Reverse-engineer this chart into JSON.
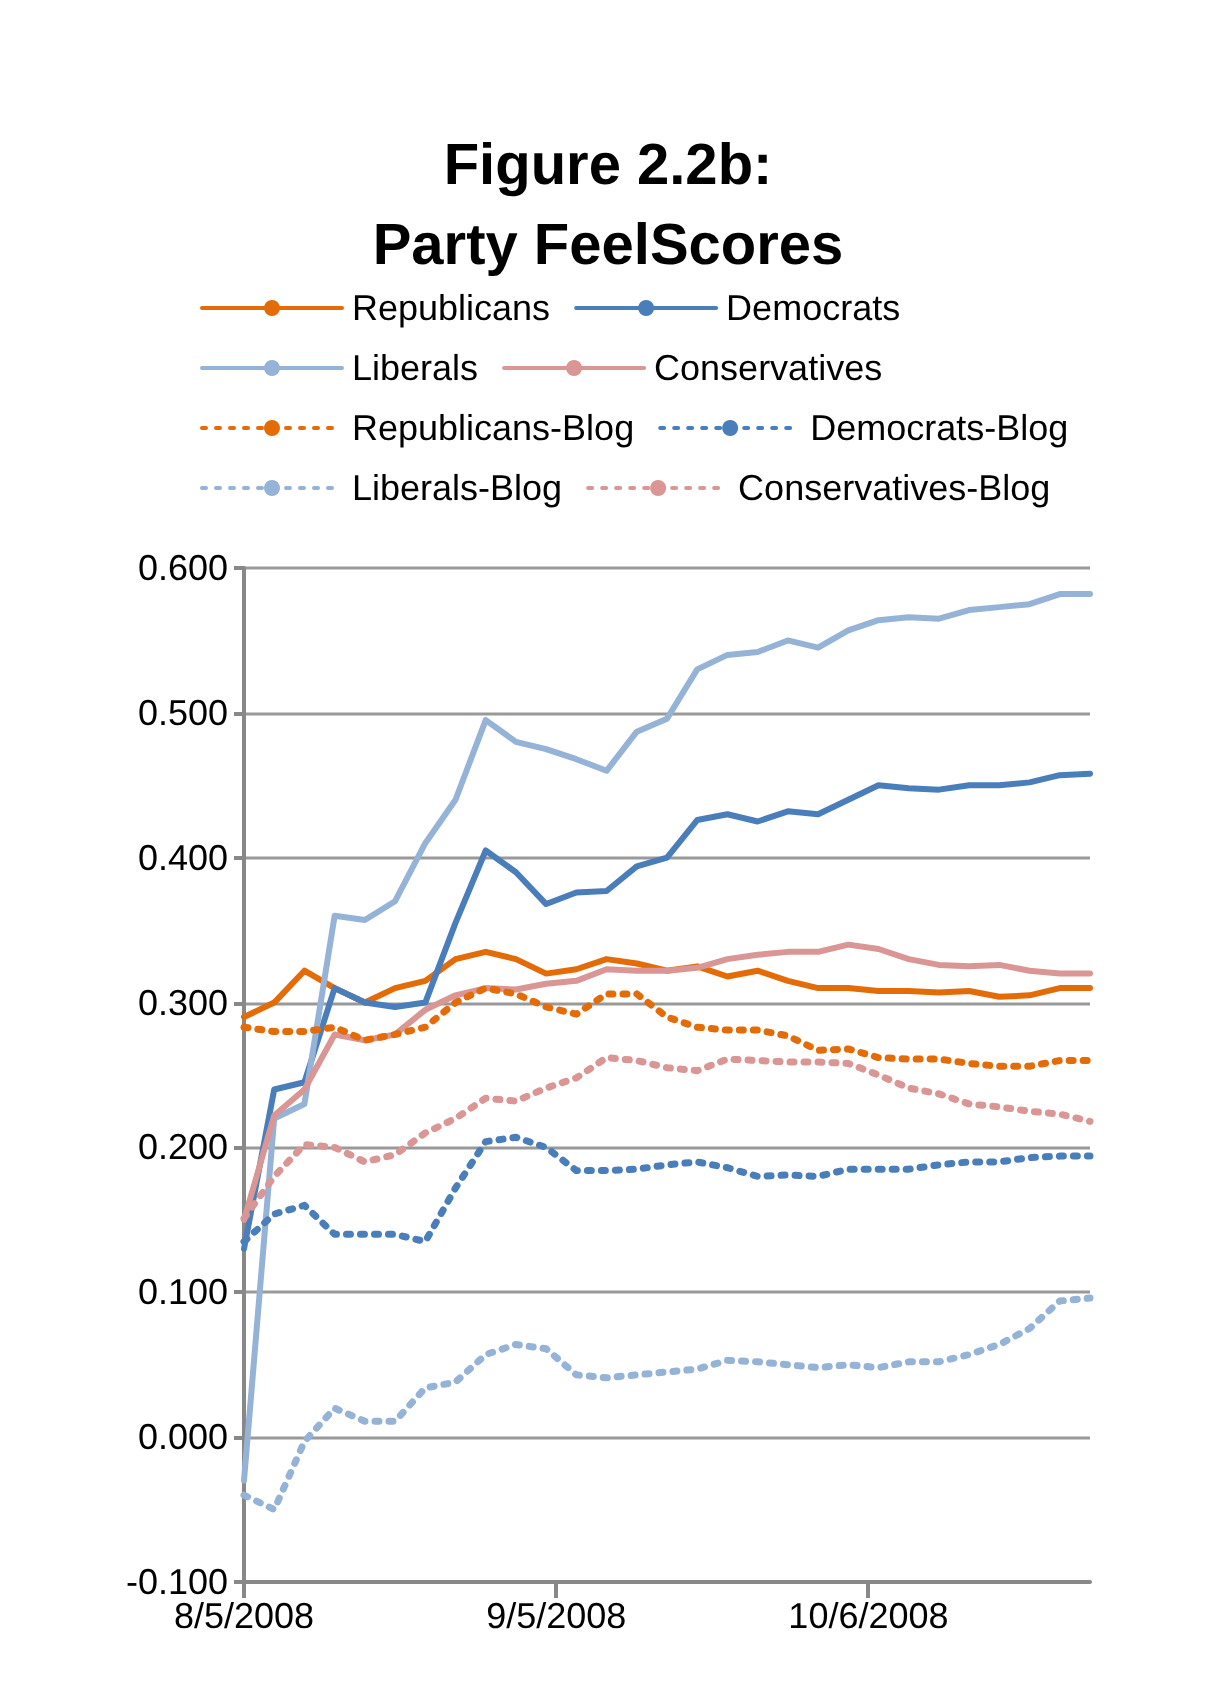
{
  "chart_data": {
    "type": "line",
    "title": "Figure 2.2b:\nParty FeelScores",
    "x": [
      "2008-08-05",
      "2008-08-08",
      "2008-08-11",
      "2008-08-14",
      "2008-08-17",
      "2008-08-20",
      "2008-08-23",
      "2008-08-26",
      "2008-08-29",
      "2008-09-01",
      "2008-09-04",
      "2008-09-07",
      "2008-09-10",
      "2008-09-13",
      "2008-09-16",
      "2008-09-19",
      "2008-09-22",
      "2008-09-25",
      "2008-09-28",
      "2008-10-01",
      "2008-10-04",
      "2008-10-07",
      "2008-10-10",
      "2008-10-13",
      "2008-10-16",
      "2008-10-19",
      "2008-10-22",
      "2008-10-25",
      "2008-10-28"
    ],
    "xlim": [
      "2008-08-05",
      "2008-10-28"
    ],
    "xticks": [
      {
        "value": "2008-08-05",
        "label": "8/5/2008"
      },
      {
        "value": "2008-09-05",
        "label": "9/5/2008"
      },
      {
        "value": "2008-10-06",
        "label": "10/6/2008"
      }
    ],
    "ylim": [
      -0.1,
      0.6
    ],
    "yticks": [
      {
        "value": -0.1,
        "label": "-0.100"
      },
      {
        "value": 0,
        "label": "0.000"
      },
      {
        "value": 0.1,
        "label": "0.100"
      },
      {
        "value": 0.2,
        "label": "0.200"
      },
      {
        "value": 0.3,
        "label": "0.300"
      },
      {
        "value": 0.4,
        "label": "0.400"
      },
      {
        "value": 0.5,
        "label": "0.500"
      },
      {
        "value": 0.6,
        "label": "0.600"
      }
    ],
    "grid": "y",
    "legend": "top",
    "marker": "none",
    "series": [
      {
        "name": "Republicans",
        "color": "#e36c09",
        "line_style": "solid",
        "values": [
          0.29,
          0.3,
          0.322,
          0.31,
          0.3,
          0.31,
          0.315,
          0.33,
          0.335,
          0.33,
          0.32,
          0.323,
          0.33,
          0.327,
          0.322,
          0.325,
          0.318,
          0.322,
          0.315,
          0.31,
          0.31,
          0.308,
          0.308,
          0.307,
          0.308,
          0.304,
          0.305,
          0.31,
          0.31
        ]
      },
      {
        "name": "Democrats",
        "color": "#4a7ebb",
        "line_style": "solid",
        "values": [
          0.13,
          0.24,
          0.245,
          0.31,
          0.3,
          0.297,
          0.3,
          0.355,
          0.405,
          0.39,
          0.368,
          0.376,
          0.377,
          0.394,
          0.4,
          0.426,
          0.43,
          0.425,
          0.432,
          0.43,
          0.44,
          0.45,
          0.448,
          0.447,
          0.45,
          0.45,
          0.452,
          0.457,
          0.458
        ]
      },
      {
        "name": "Liberals",
        "color": "#95b3d7",
        "line_style": "solid",
        "values": [
          -0.03,
          0.22,
          0.23,
          0.36,
          0.357,
          0.37,
          0.41,
          0.44,
          0.495,
          0.48,
          0.475,
          0.468,
          0.46,
          0.487,
          0.496,
          0.53,
          0.54,
          0.542,
          0.55,
          0.545,
          0.557,
          0.564,
          0.566,
          0.565,
          0.571,
          0.573,
          0.575,
          0.582,
          0.582
        ]
      },
      {
        "name": "Conservatives",
        "color": "#d99694",
        "line_style": "solid",
        "values": [
          0.15,
          0.222,
          0.24,
          0.278,
          0.274,
          0.278,
          0.295,
          0.305,
          0.31,
          0.309,
          0.313,
          0.315,
          0.323,
          0.322,
          0.322,
          0.324,
          0.33,
          0.333,
          0.335,
          0.335,
          0.34,
          0.337,
          0.33,
          0.326,
          0.325,
          0.326,
          0.322,
          0.32,
          0.32
        ]
      },
      {
        "name": "Republicans-Blog",
        "color": "#e36c09",
        "line_style": "dotted",
        "values": [
          0.283,
          0.28,
          0.28,
          0.283,
          0.274,
          0.278,
          0.283,
          0.3,
          0.31,
          0.306,
          0.297,
          0.292,
          0.306,
          0.306,
          0.29,
          0.283,
          0.281,
          0.281,
          0.277,
          0.267,
          0.268,
          0.262,
          0.261,
          0.261,
          0.258,
          0.256,
          0.256,
          0.26,
          0.26
        ]
      },
      {
        "name": "Democrats-Blog",
        "color": "#4a7ebb",
        "line_style": "dotted",
        "values": [
          0.135,
          0.154,
          0.16,
          0.14,
          0.14,
          0.14,
          0.135,
          0.172,
          0.204,
          0.207,
          0.2,
          0.184,
          0.184,
          0.185,
          0.188,
          0.19,
          0.186,
          0.18,
          0.181,
          0.18,
          0.185,
          0.185,
          0.185,
          0.188,
          0.19,
          0.19,
          0.193,
          0.194,
          0.194
        ]
      },
      {
        "name": "Liberals-Blog",
        "color": "#95b3d7",
        "line_style": "dotted",
        "values": [
          -0.04,
          -0.05,
          -0.003,
          0.02,
          0.011,
          0.011,
          0.034,
          0.038,
          0.057,
          0.064,
          0.061,
          0.043,
          0.041,
          0.043,
          0.045,
          0.047,
          0.053,
          0.052,
          0.05,
          0.048,
          0.05,
          0.048,
          0.052,
          0.052,
          0.057,
          0.064,
          0.075,
          0.094,
          0.096
        ]
      },
      {
        "name": "Conservatives-Blog",
        "color": "#d99694",
        "line_style": "dotted",
        "values": [
          0.151,
          0.18,
          0.202,
          0.2,
          0.19,
          0.195,
          0.21,
          0.22,
          0.234,
          0.232,
          0.241,
          0.248,
          0.262,
          0.26,
          0.255,
          0.253,
          0.261,
          0.26,
          0.259,
          0.259,
          0.258,
          0.25,
          0.241,
          0.237,
          0.23,
          0.228,
          0.225,
          0.223,
          0.218
        ]
      }
    ]
  }
}
